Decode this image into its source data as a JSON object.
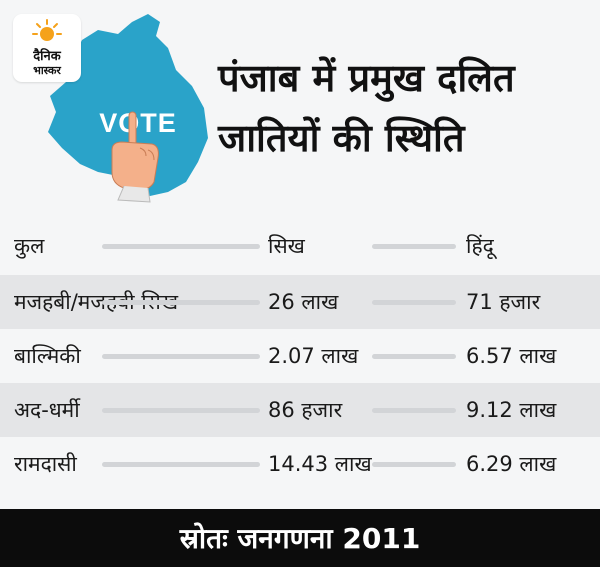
{
  "brand": {
    "logo_line1": "दैनिक",
    "logo_line2": "भास्कर"
  },
  "graphic": {
    "map_label": "VOTE",
    "icons": [
      "punjab-map-icon",
      "pointing-hand-icon",
      "sun-icon"
    ],
    "colors": {
      "map": "#2aa3c9",
      "logo_sun": "#f5a21b"
    }
  },
  "title": "पंजाब में प्रमुख दलित जातियों की स्थिति",
  "table": {
    "header": {
      "col1": "कुल",
      "col2": "सिख",
      "col3": "हिंदू"
    },
    "rows": [
      {
        "caste": "मजहबी/मजहबी सिख",
        "sikh": "26 लाख",
        "hindu": "71 हजार"
      },
      {
        "caste": "बाल्मिकी",
        "sikh": "2.07 लाख",
        "hindu": "6.57 लाख"
      },
      {
        "caste": "अद-धर्मी",
        "sikh": "86 हजार",
        "hindu": "9.12 लाख"
      },
      {
        "caste": "रामदासी",
        "sikh": "14.43 लाख",
        "hindu": "6.29 लाख"
      }
    ]
  },
  "source": "स्रोतः जनगणना 2011"
}
